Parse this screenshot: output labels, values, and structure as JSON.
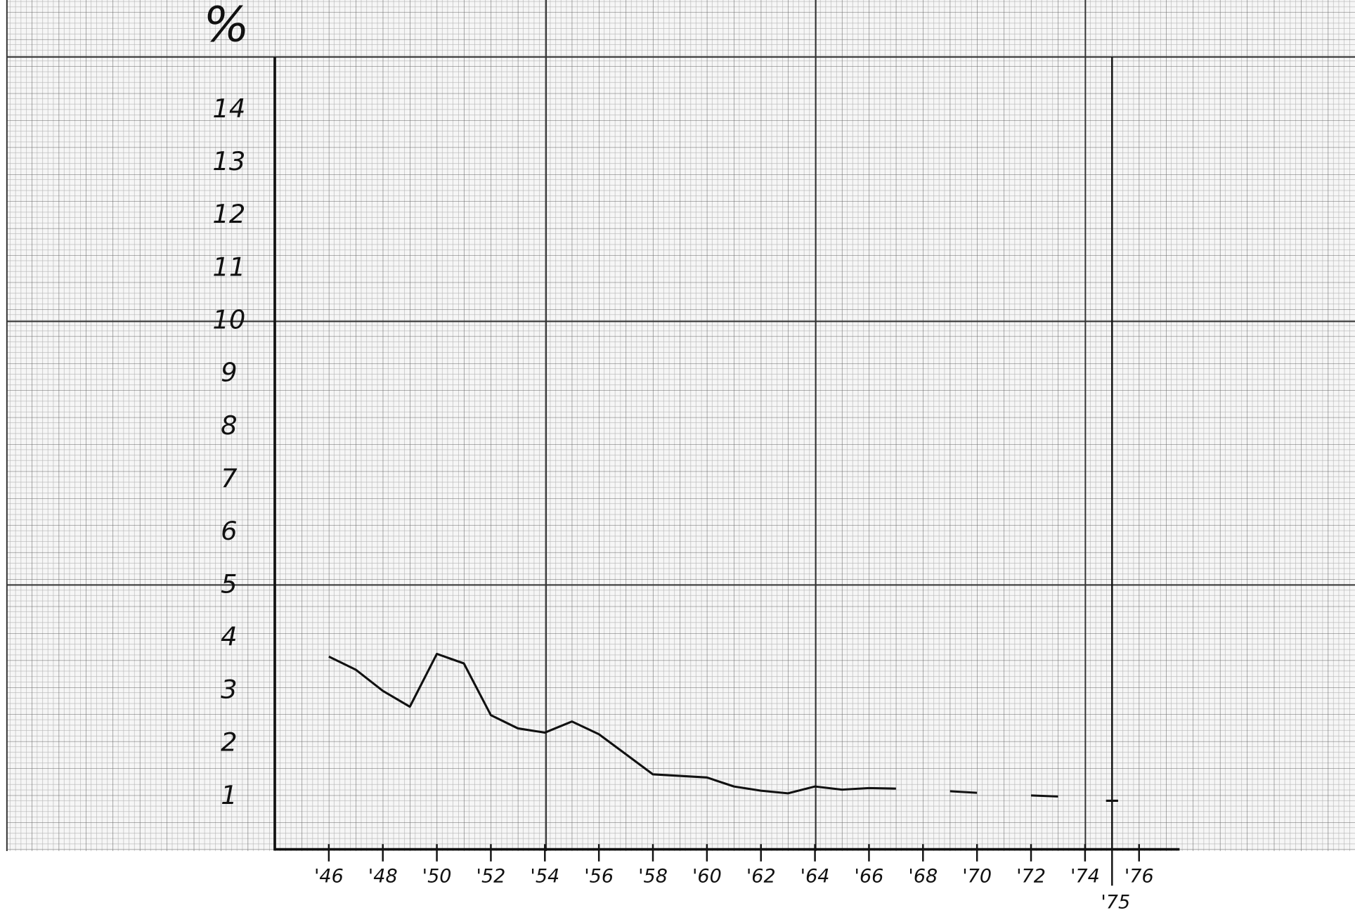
{
  "chart_data": {
    "type": "line",
    "y_label": "%",
    "x": [
      1946,
      1947,
      1948,
      1949,
      1950,
      1951,
      1952,
      1953,
      1954,
      1955,
      1956,
      1957,
      1958,
      1959,
      1960,
      1961,
      1962,
      1963,
      1964,
      1965,
      1966,
      1967,
      1968,
      1969,
      1970,
      1971,
      1972,
      1973,
      1974,
      1975
    ],
    "series": [
      {
        "color": "#111111",
        "values": [
          3.65,
          3.4,
          3.0,
          2.7,
          3.7,
          3.52,
          2.54,
          2.29,
          2.21,
          2.42,
          2.18,
          1.8,
          1.42,
          1.39,
          1.36,
          1.19,
          1.11,
          1.06,
          1.19,
          1.13,
          1.16,
          1.15,
          null,
          1.1,
          1.07,
          null,
          1.02,
          1.0,
          null,
          0.92
        ]
      }
    ],
    "xlim": [
      1944,
      1977.5
    ],
    "ylim": [
      0,
      15
    ],
    "yticks": [
      1,
      2,
      3,
      4,
      5,
      6,
      7,
      8,
      9,
      10,
      11,
      12,
      13,
      14
    ],
    "xticks": [
      {
        "value": 1946,
        "label": "'46"
      },
      {
        "value": 1948,
        "label": "'48"
      },
      {
        "value": 1950,
        "label": "'50"
      },
      {
        "value": 1952,
        "label": "'52"
      },
      {
        "value": 1954,
        "label": "'54"
      },
      {
        "value": 1956,
        "label": "'56"
      },
      {
        "value": 1958,
        "label": "'58"
      },
      {
        "value": 1960,
        "label": "'60"
      },
      {
        "value": 1962,
        "label": "'62"
      },
      {
        "value": 1964,
        "label": "'64"
      },
      {
        "value": 1966,
        "label": "'66"
      },
      {
        "value": 1968,
        "label": "'68"
      },
      {
        "value": 1970,
        "label": "'70"
      },
      {
        "value": 1972,
        "label": "'72"
      },
      {
        "value": 1974,
        "label": "'74"
      },
      {
        "value": 1975,
        "label": "'75"
      },
      {
        "value": 1976,
        "label": "'76"
      }
    ]
  }
}
